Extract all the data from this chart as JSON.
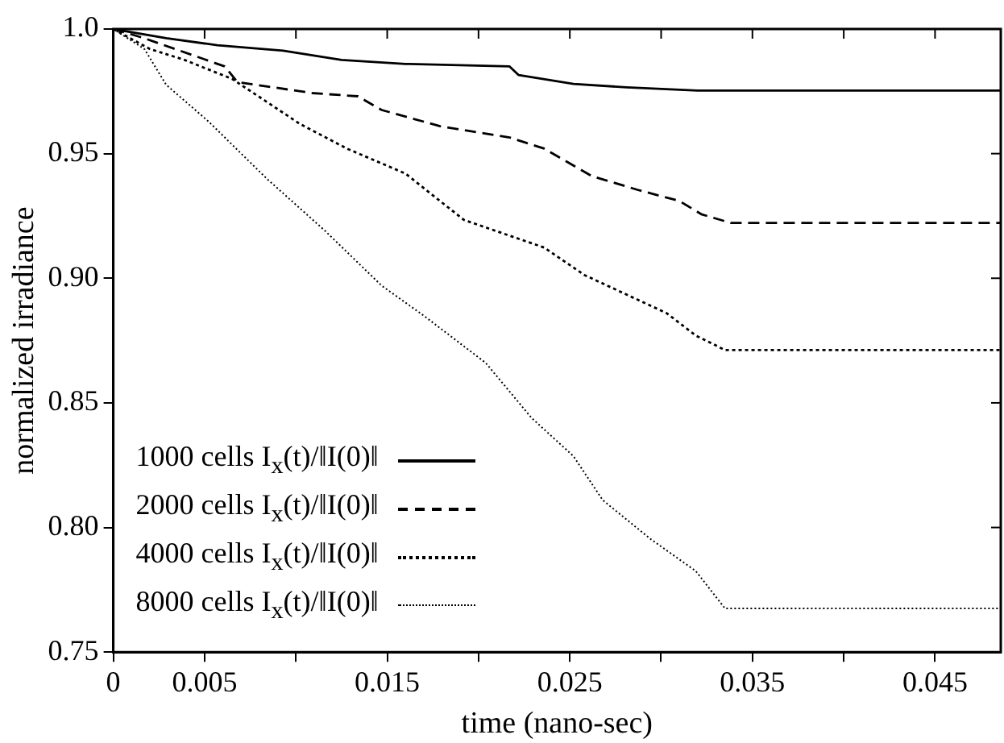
{
  "chart_data": {
    "type": "line",
    "xlabel": "time (nano-sec)",
    "ylabel": "normalized irradiance",
    "xlim": [
      0,
      0.0486
    ],
    "xticks": [
      0,
      0.005,
      {
        "value": 0.01,
        "label": null
      },
      0.015,
      {
        "value": 0.02,
        "label": null
      },
      0.025,
      {
        "value": 0.03,
        "label": null
      },
      0.035,
      {
        "value": 0.04,
        "label": null
      },
      0.045
    ],
    "ylim": [
      0.75,
      1.0
    ],
    "yticks": [
      0.75,
      {
        "value": 0.8,
        "label": "0.80"
      },
      0.85,
      {
        "value": 0.9,
        "label": "0.90"
      },
      0.95,
      {
        "value": 1.0,
        "label": "1.0"
      }
    ],
    "grid": false,
    "legend": "bottom left",
    "marker": "none",
    "series": [
      {
        "name": "1000 cells I$_{x}$(t)/‖I(0)‖",
        "color": "#000000",
        "line_style": "solid",
        "x": [
          0,
          0.0029,
          0.0057,
          0.0093,
          0.0125,
          0.016,
          0.0217,
          0.0222,
          0.0252,
          0.0281,
          0.032,
          0.0486
        ],
        "values": [
          1.0,
          0.9963,
          0.9935,
          0.9913,
          0.9876,
          0.986,
          0.985,
          0.9815,
          0.978,
          0.9766,
          0.9753,
          0.9753
        ]
      },
      {
        "name": "2000 cells I$_{x}$(t)/‖I(0)‖",
        "color": "#000000",
        "line_style": "dashed",
        "x": [
          0,
          0.0017,
          0.0061,
          0.0068,
          0.0109,
          0.0134,
          0.0147,
          0.0179,
          0.0217,
          0.0236,
          0.0262,
          0.0287,
          0.031,
          0.0322,
          0.0338,
          0.0486
        ],
        "values": [
          1.0,
          0.9963,
          0.985,
          0.9787,
          0.9743,
          0.973,
          0.9675,
          0.961,
          0.9565,
          0.952,
          0.941,
          0.9355,
          0.931,
          0.9257,
          0.9222,
          0.9222
        ]
      },
      {
        "name": "4000 cells I$_{x}$(t)/‖I(0)‖",
        "color": "#000000",
        "line_style": "dotted",
        "x": [
          0,
          0.002,
          0.0039,
          0.0065,
          0.0084,
          0.0102,
          0.0128,
          0.016,
          0.0192,
          0.0236,
          0.0258,
          0.0303,
          0.0319,
          0.0335,
          0.0486
        ],
        "values": [
          1.0,
          0.992,
          0.9876,
          0.98,
          0.9708,
          0.962,
          0.952,
          0.942,
          0.9234,
          0.9123,
          0.9013,
          0.886,
          0.877,
          0.8712,
          0.8712
        ]
      },
      {
        "name": "8000 cells I$_{x}$(t)/‖I(0)‖",
        "color": "#000000",
        "line_style": "dotted",
        "x": [
          0,
          0.0017,
          0.0029,
          0.0052,
          0.0084,
          0.0116,
          0.0147,
          0.017,
          0.0204,
          0.0229,
          0.0252,
          0.0268,
          0.0294,
          0.0319,
          0.0335,
          0.0486
        ],
        "values": [
          1.0,
          0.992,
          0.9776,
          0.963,
          0.94,
          0.919,
          0.897,
          0.885,
          0.866,
          0.844,
          0.8286,
          0.811,
          0.7955,
          0.7825,
          0.7675,
          0.7675
        ]
      }
    ]
  }
}
